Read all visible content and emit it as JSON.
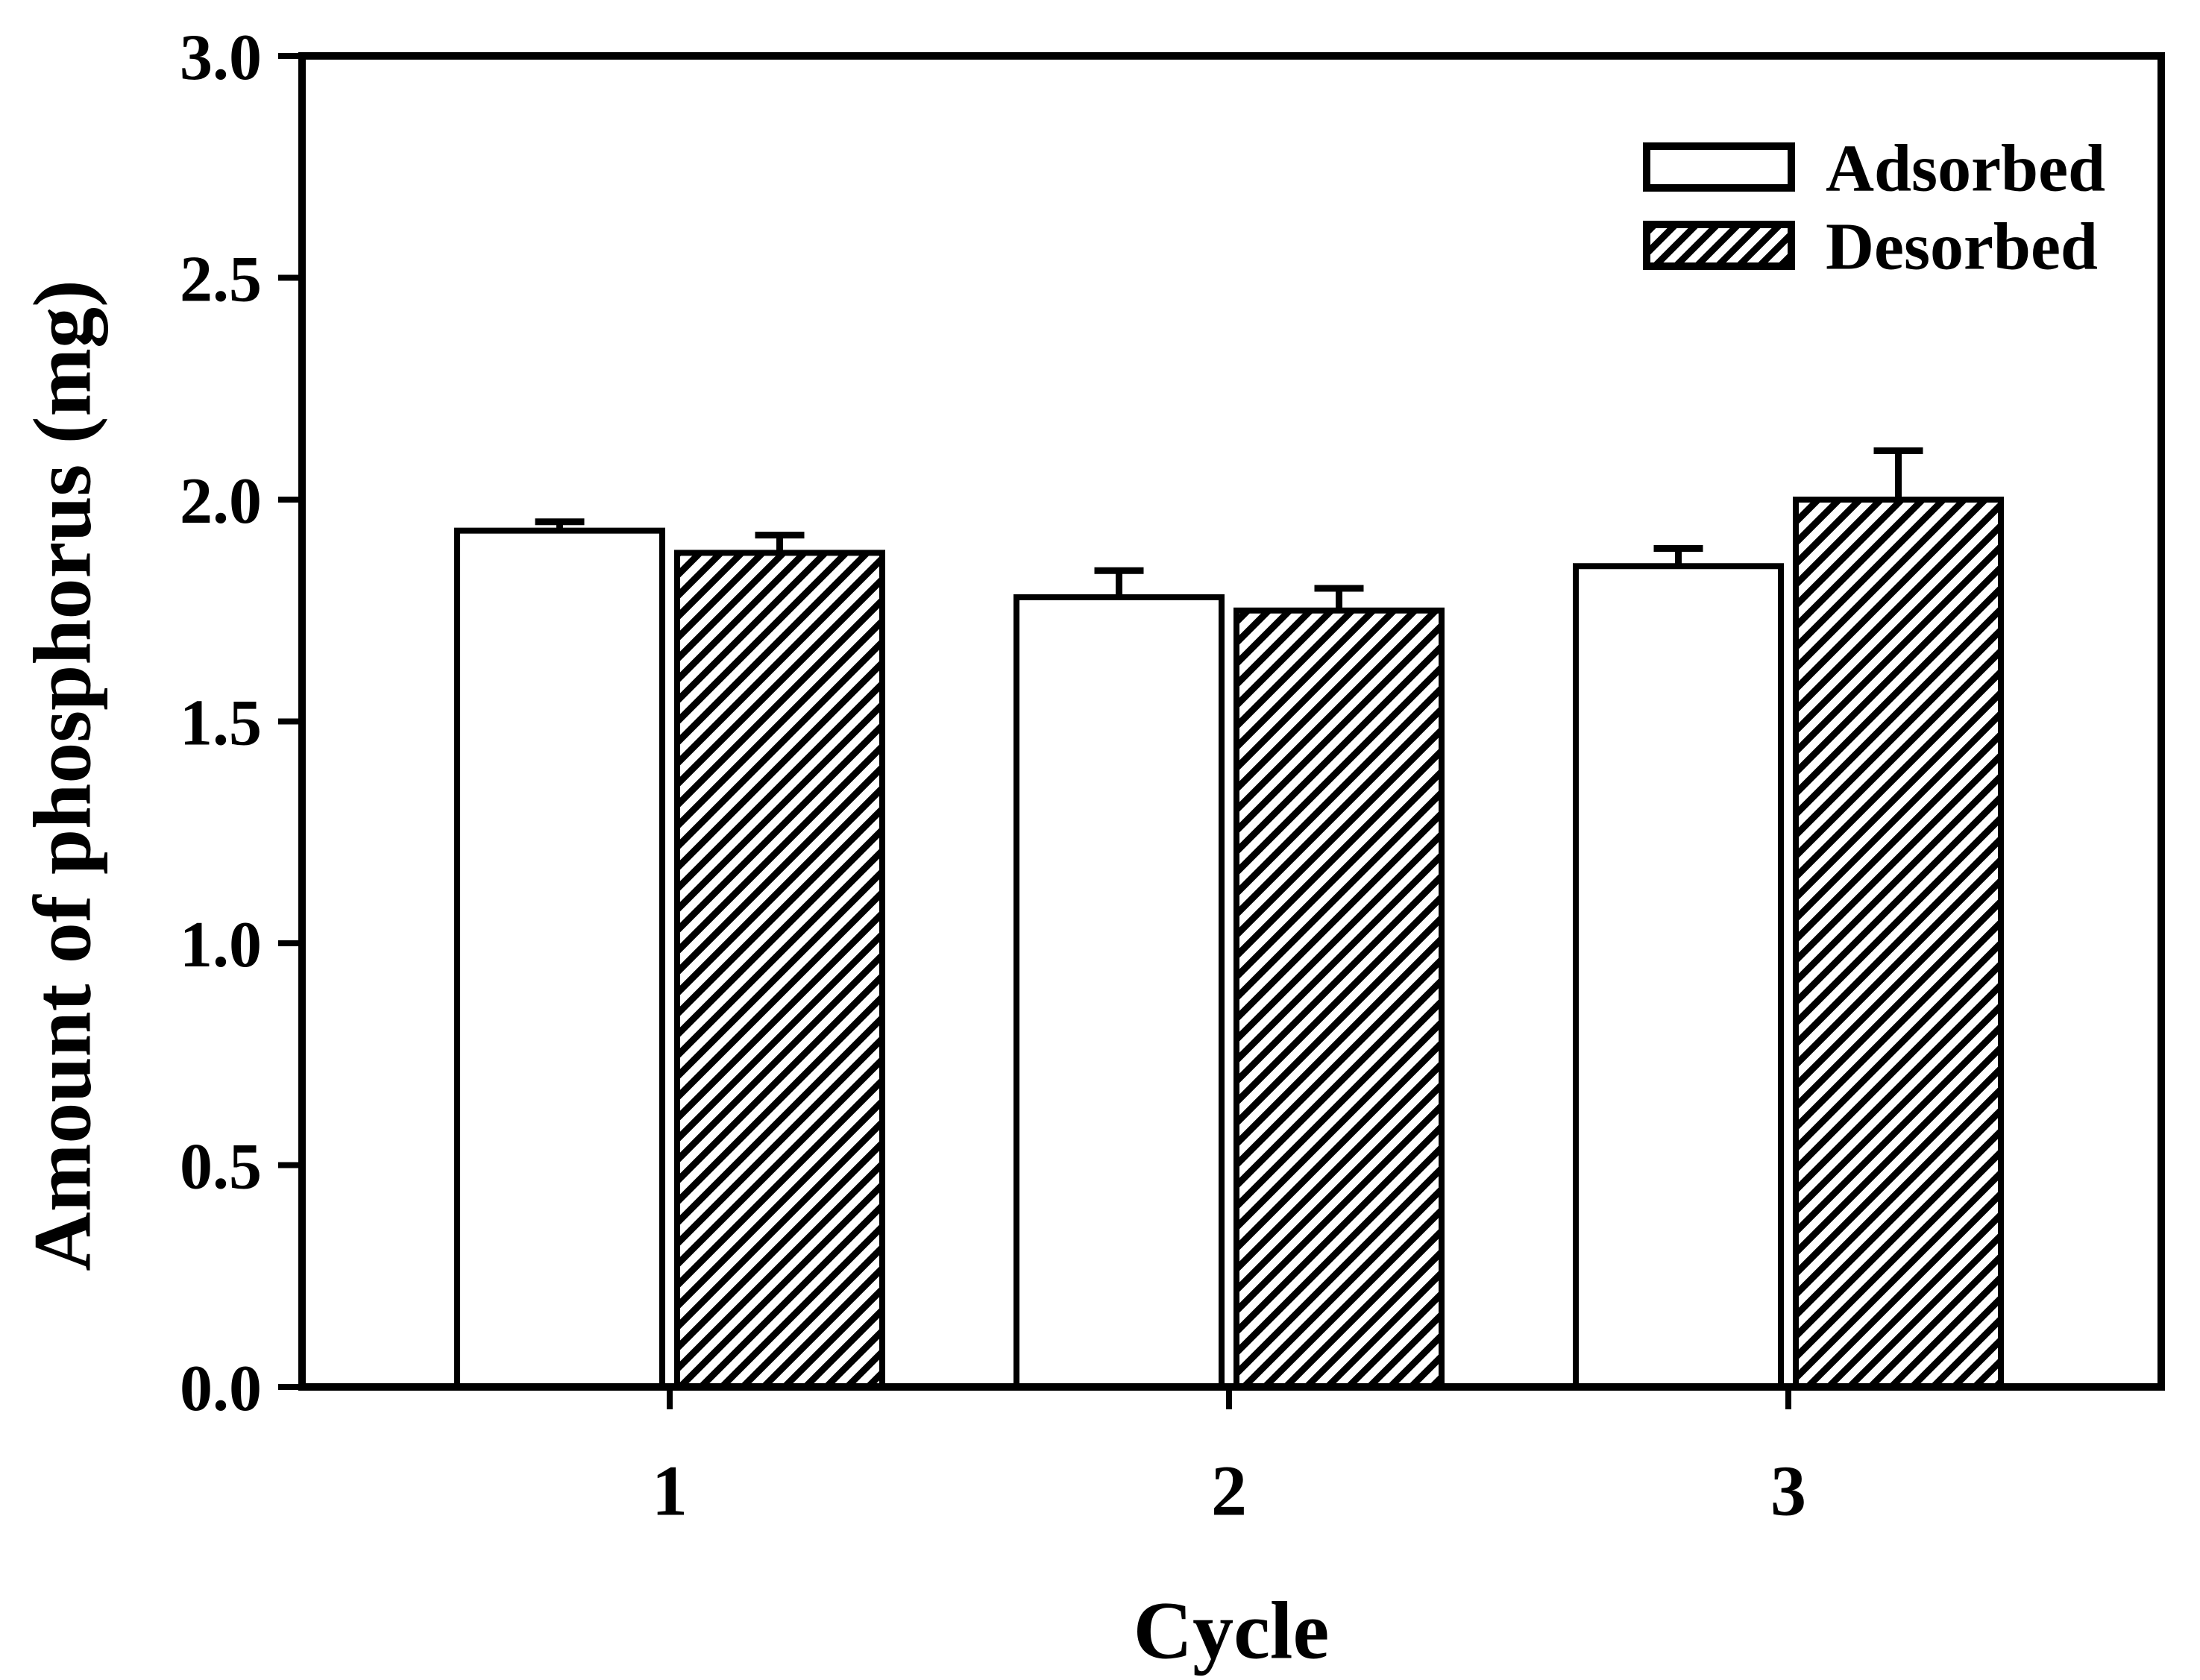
{
  "figure": {
    "background_color": "#ffffff",
    "ink_color": "#000000"
  },
  "chart_data": {
    "type": "bar",
    "title": "",
    "xlabel": "Cycle",
    "ylabel": "Amount of phosphorus (mg)",
    "categories": [
      "1",
      "2",
      "3"
    ],
    "series": [
      {
        "name": "Adsorbed",
        "fill_style": "open-white",
        "values": [
          1.93,
          1.78,
          1.85
        ],
        "errors_plus": [
          0.02,
          0.06,
          0.04
        ]
      },
      {
        "name": "Desorbed",
        "fill_style": "diagonal-hatch",
        "values": [
          1.88,
          1.75,
          2.0
        ],
        "errors_plus": [
          0.04,
          0.05,
          0.11
        ]
      }
    ],
    "ylim": [
      0.0,
      3.0
    ],
    "ytick_step": 0.5,
    "ytick_labels": [
      "0.0",
      "0.5",
      "1.0",
      "1.5",
      "2.0",
      "2.5",
      "3.0"
    ],
    "grid": false,
    "error_bars": "upper-only-with-cap",
    "legend": {
      "position": "top-right",
      "entries": [
        "Adsorbed",
        "Desorbed"
      ]
    }
  }
}
